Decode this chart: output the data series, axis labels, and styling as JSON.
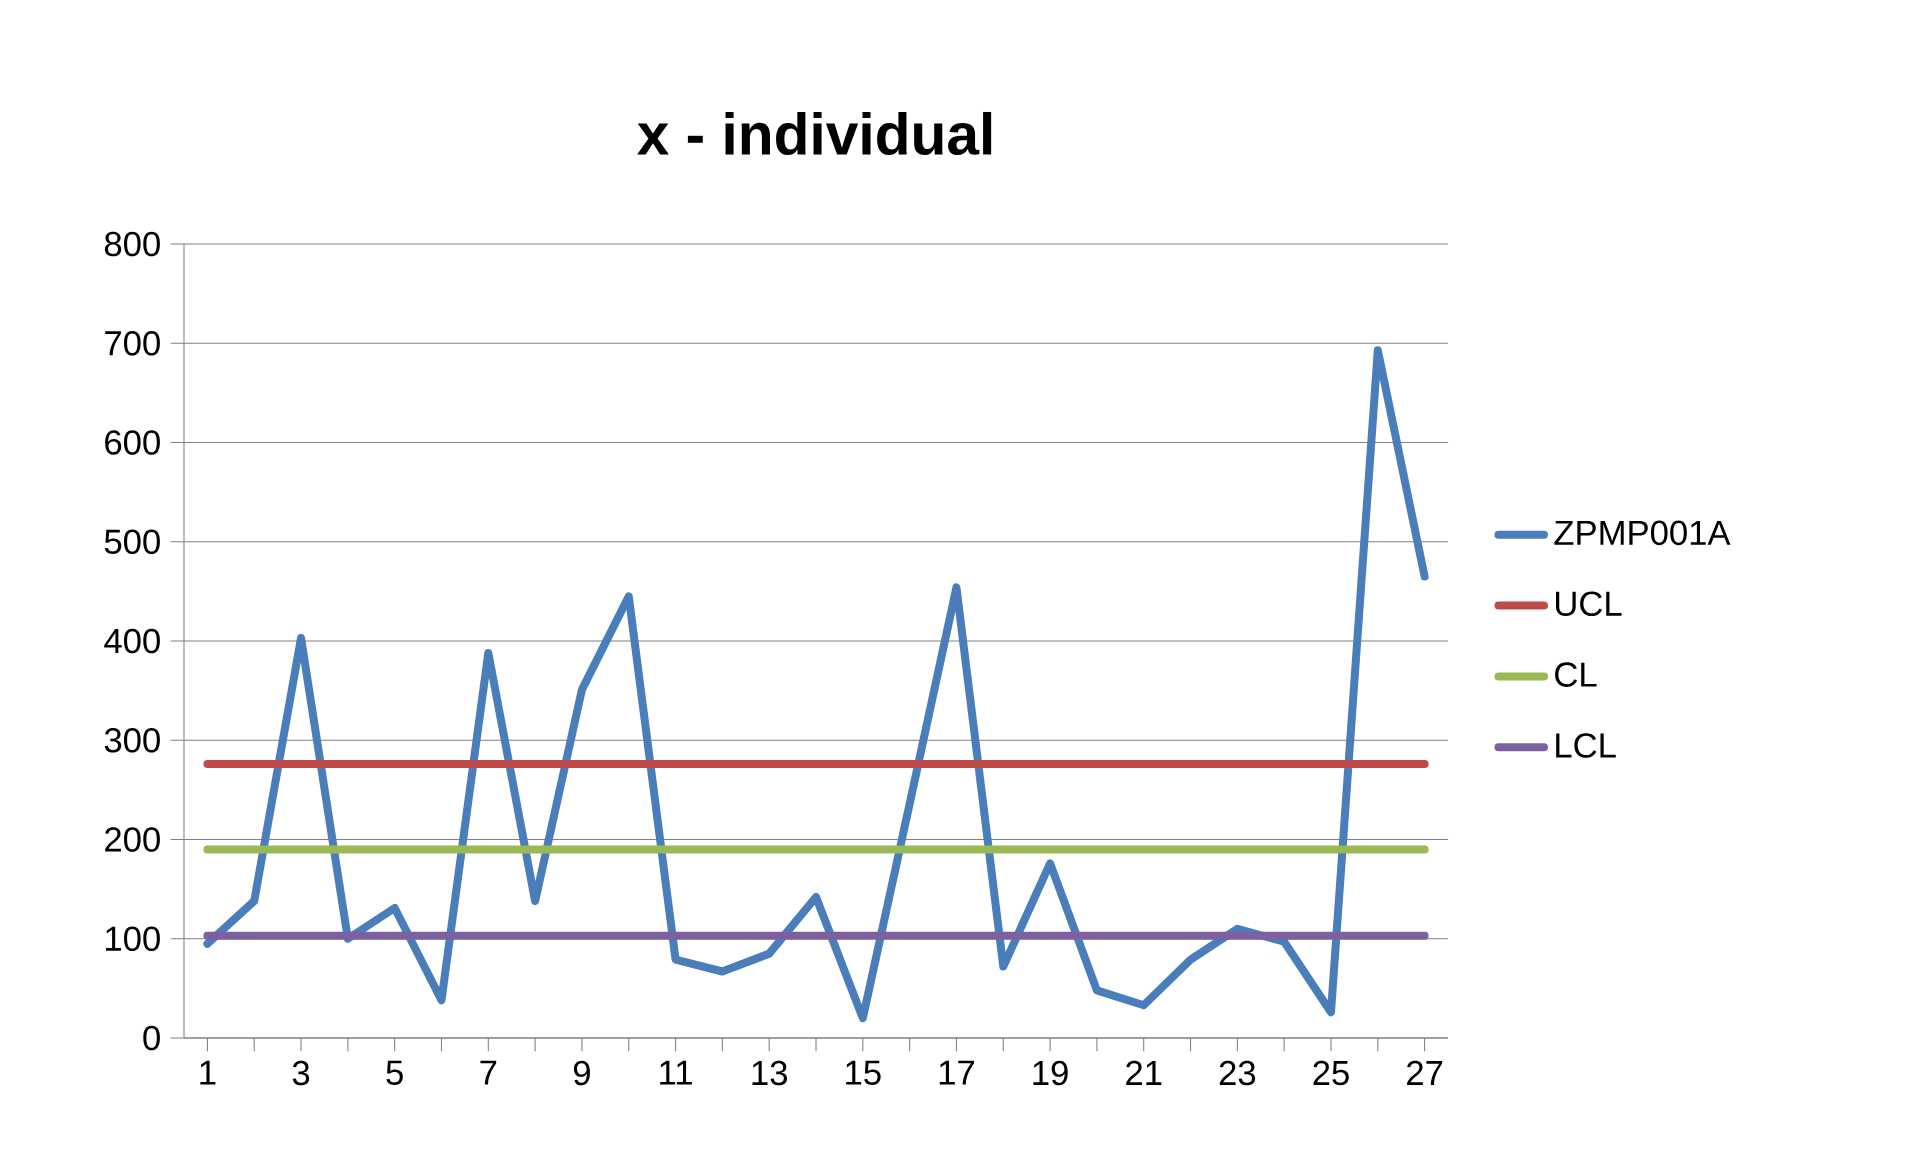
{
  "chart_data": {
    "type": "line",
    "title": "x - individual",
    "x": [
      1,
      2,
      3,
      4,
      5,
      6,
      7,
      8,
      9,
      10,
      11,
      12,
      13,
      14,
      15,
      16,
      17,
      18,
      19,
      20,
      21,
      22,
      23,
      24,
      25,
      26,
      27
    ],
    "series": [
      {
        "name": "ZPMP001A",
        "color": "#4a7ebb",
        "values": [
          95,
          138,
          403,
          100,
          131,
          38,
          388,
          138,
          351,
          445,
          79,
          67,
          85,
          142,
          20,
          236,
          454,
          72,
          176,
          48,
          33,
          79,
          110,
          97,
          26,
          693,
          465
        ]
      },
      {
        "name": "UCL",
        "color": "#be4b48",
        "values": [
          276,
          276,
          276,
          276,
          276,
          276,
          276,
          276,
          276,
          276,
          276,
          276,
          276,
          276,
          276,
          276,
          276,
          276,
          276,
          276,
          276,
          276,
          276,
          276,
          276,
          276,
          276
        ]
      },
      {
        "name": "CL",
        "color": "#98b954",
        "values": [
          190,
          190,
          190,
          190,
          190,
          190,
          190,
          190,
          190,
          190,
          190,
          190,
          190,
          190,
          190,
          190,
          190,
          190,
          190,
          190,
          190,
          190,
          190,
          190,
          190,
          190,
          190
        ]
      },
      {
        "name": "LCL",
        "color": "#7d60a0",
        "values": [
          103,
          103,
          103,
          103,
          103,
          103,
          103,
          103,
          103,
          103,
          103,
          103,
          103,
          103,
          103,
          103,
          103,
          103,
          103,
          103,
          103,
          103,
          103,
          103,
          103,
          103,
          103
        ]
      }
    ],
    "xlim": [
      0.5,
      27.5
    ],
    "xticks": [
      1,
      {
        "value": 2,
        "label": null
      },
      3,
      {
        "value": 4,
        "label": null
      },
      5,
      {
        "value": 6,
        "label": null
      },
      7,
      {
        "value": 8,
        "label": null
      },
      9,
      {
        "value": 10,
        "label": null
      },
      11,
      {
        "value": 12,
        "label": null
      },
      13,
      {
        "value": 14,
        "label": null
      },
      15,
      {
        "value": 16,
        "label": null
      },
      17,
      {
        "value": 18,
        "label": null
      },
      19,
      {
        "value": 20,
        "label": null
      },
      21,
      {
        "value": 22,
        "label": null
      },
      23,
      {
        "value": 24,
        "label": null
      },
      25,
      {
        "value": 26,
        "label": null
      },
      27
    ],
    "ylim": [
      0,
      800
    ],
    "yticks": [
      0,
      100,
      200,
      300,
      400,
      500,
      600,
      700,
      800
    ],
    "grid": "y",
    "legend": "right",
    "marker": "none",
    "line_style": "solid"
  }
}
